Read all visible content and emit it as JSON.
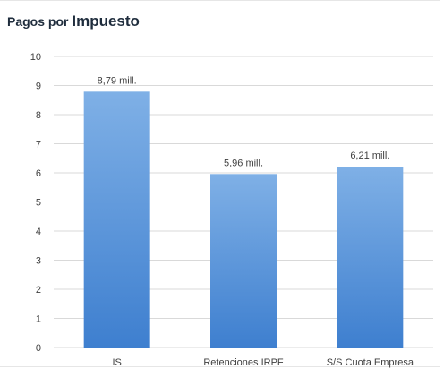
{
  "title": {
    "part1": "Pagos por ",
    "part2": "Impuesto"
  },
  "colors": {
    "bar_top": "#7fb0e6",
    "bar_bottom": "#3e7fcf",
    "grid": "#d9d9d9"
  },
  "chart_data": {
    "type": "bar",
    "title": "Pagos por Impuesto",
    "categories": [
      "IS",
      "Retenciones IRPF",
      "S/S Cuota Empresa"
    ],
    "values": [
      8.79,
      5.96,
      6.21
    ],
    "data_labels": [
      "8,79 mill.",
      "5,96 mill.",
      "6,21 mill."
    ],
    "ylim": [
      0,
      10
    ],
    "yticks": [
      0,
      1,
      2,
      3,
      4,
      5,
      6,
      7,
      8,
      9,
      10
    ],
    "grid": true,
    "legend": "none",
    "xlabel": "",
    "ylabel": ""
  }
}
